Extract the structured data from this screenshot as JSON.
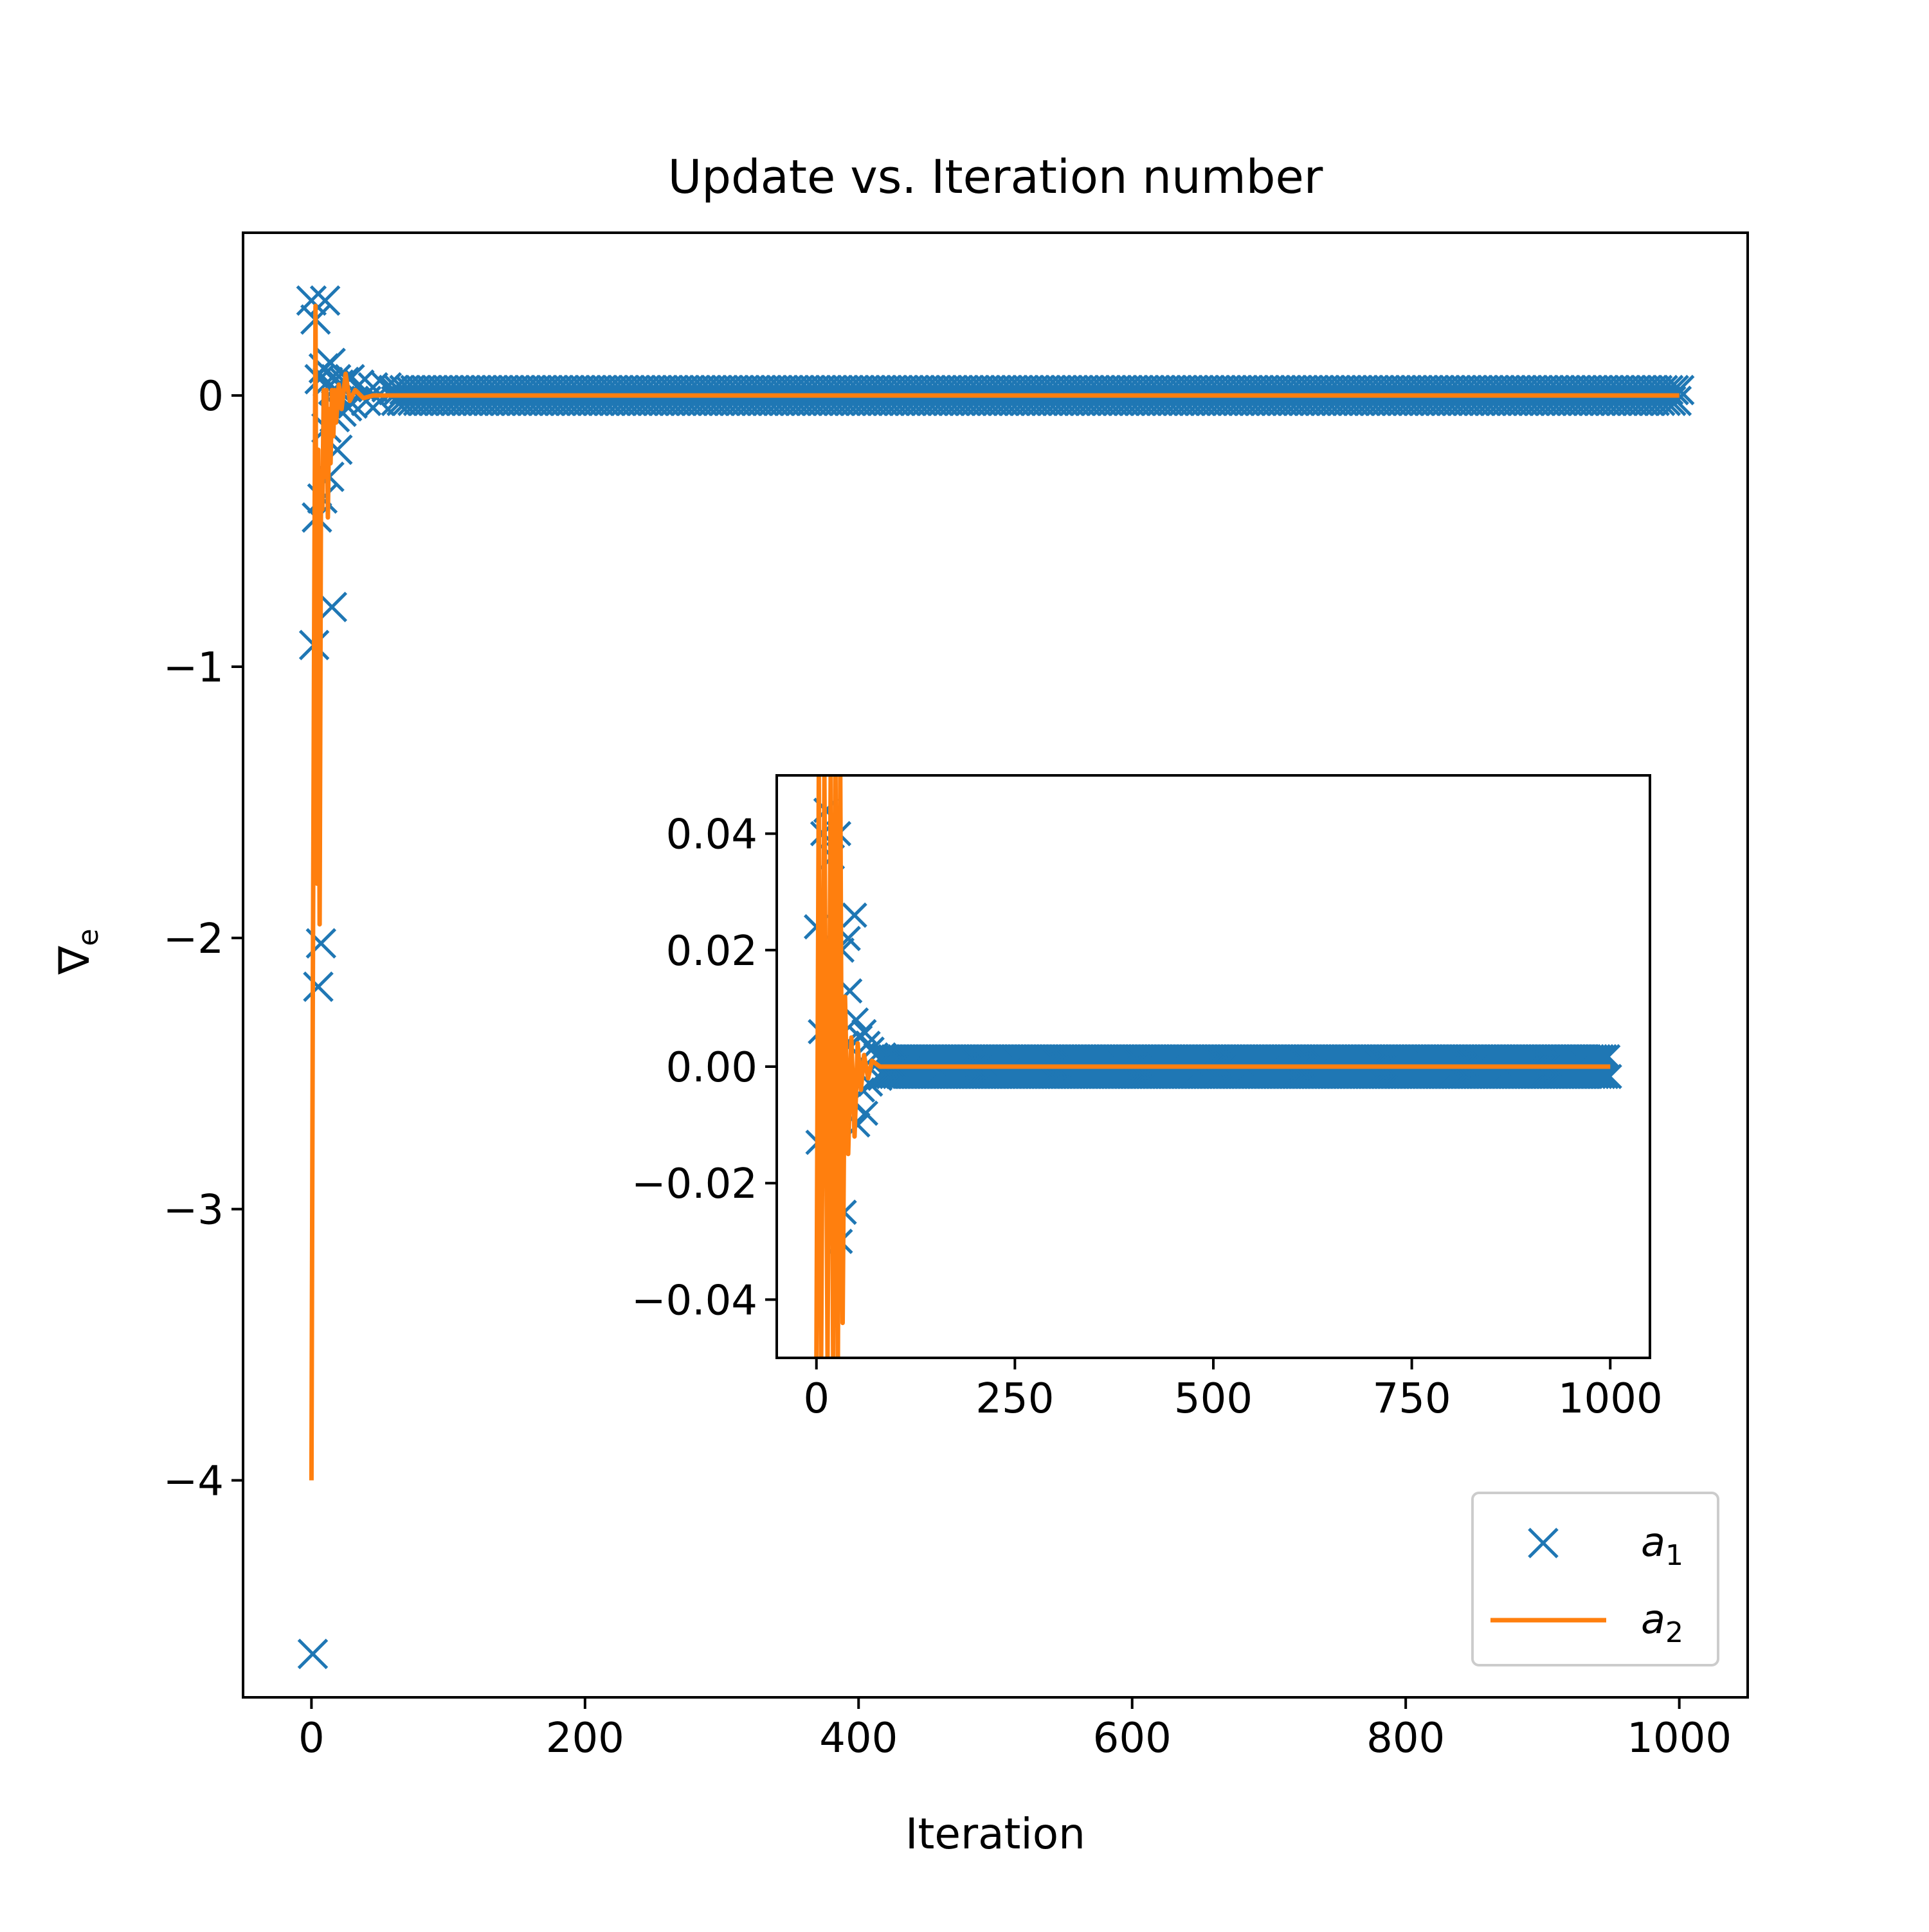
{
  "chart_data": [
    {
      "type": "scatter",
      "title": "Update vs. Iteration number",
      "xlabel": "Iteration",
      "ylabel": "∇",
      "ylabel_subscript": "e",
      "xlim": [
        -50,
        1050
      ],
      "ylim": [
        -4.8,
        0.6
      ],
      "xticks": [
        0,
        200,
        400,
        600,
        800,
        1000
      ],
      "xtick_labels": [
        "0",
        "200",
        "400",
        "600",
        "800",
        "1000"
      ],
      "yticks": [
        0,
        -1,
        -2,
        -3,
        -4
      ],
      "ytick_labels": [
        "0",
        "−1",
        "−2",
        "−3",
        "−4"
      ],
      "grid": false,
      "legend_position": "lower-right",
      "series": [
        {
          "name": "a",
          "name_subscript": "1",
          "marker": "x",
          "color": "#1f77b4",
          "points": [
            [
              0,
              0.35
            ],
            [
              1,
              -4.64
            ],
            [
              2,
              -0.92
            ],
            [
              3,
              0.28
            ],
            [
              4,
              -0.45
            ],
            [
              5,
              -2.18
            ],
            [
              6,
              0.06
            ],
            [
              7,
              -2.02
            ],
            [
              8,
              -0.38
            ],
            [
              9,
              0.1
            ],
            [
              10,
              0.35
            ],
            [
              11,
              -0.12
            ],
            [
              12,
              0.05
            ],
            [
              13,
              -0.3
            ],
            [
              14,
              0.12
            ],
            [
              15,
              -0.78
            ],
            [
              16,
              0.02
            ],
            [
              17,
              -0.08
            ],
            [
              18,
              0.06
            ],
            [
              19,
              -0.2
            ],
            [
              20,
              0.04
            ],
            [
              22,
              -0.06
            ],
            [
              24,
              0.05
            ],
            [
              26,
              -0.04
            ],
            [
              28,
              0.06
            ],
            [
              30,
              -0.03
            ],
            [
              35,
              0.04
            ],
            [
              40,
              -0.02
            ],
            [
              45,
              0.03
            ],
            [
              50,
              -0.02
            ],
            [
              55,
              0.03
            ],
            [
              60,
              0.02
            ]
          ],
          "tail": {
            "x_start": 60,
            "x_end": 1000,
            "amplitude": 0.02
          }
        },
        {
          "name": "a",
          "name_subscript": "2",
          "marker": "line",
          "color": "#ff7f0e",
          "points": [
            [
              0,
              -4.0
            ],
            [
              1,
              -2.2
            ],
            [
              2,
              -0.85
            ],
            [
              3,
              0.33
            ],
            [
              4,
              -1.8
            ],
            [
              5,
              -0.2
            ],
            [
              6,
              -1.95
            ],
            [
              7,
              -0.3
            ],
            [
              8,
              -0.42
            ],
            [
              9,
              0.02
            ],
            [
              10,
              -0.3
            ],
            [
              11,
              0.02
            ],
            [
              12,
              -0.45
            ],
            [
              13,
              -0.05
            ],
            [
              14,
              -0.25
            ],
            [
              15,
              0.02
            ],
            [
              16,
              -0.15
            ],
            [
              17,
              0.02
            ],
            [
              18,
              -0.1
            ],
            [
              20,
              0.04
            ],
            [
              22,
              -0.05
            ],
            [
              25,
              0.08
            ],
            [
              28,
              -0.02
            ],
            [
              32,
              0.02
            ],
            [
              38,
              -0.01
            ],
            [
              45,
              0.0
            ],
            [
              1000,
              0.0
            ]
          ]
        }
      ]
    },
    {
      "type": "scatter",
      "inset": true,
      "xlim": [
        -50,
        1050
      ],
      "ylim": [
        -0.05,
        0.05
      ],
      "xticks": [
        0,
        250,
        500,
        750,
        1000
      ],
      "xtick_labels": [
        "0",
        "250",
        "500",
        "750",
        "1000"
      ],
      "yticks": [
        0.04,
        0.02,
        0.0,
        -0.02,
        -0.04
      ],
      "ytick_labels": [
        "0.04",
        "0.02",
        "0.00",
        "−0.02",
        "−0.04"
      ],
      "grid": false,
      "series": [
        {
          "marker": "x",
          "color": "#1f77b4",
          "points": [
            [
              0,
              0.024
            ],
            [
              2,
              -0.013
            ],
            [
              5,
              0.006
            ],
            [
              8,
              0.04
            ],
            [
              12,
              0.044
            ],
            [
              15,
              -0.004
            ],
            [
              18,
              0.01
            ],
            [
              20,
              0.036
            ],
            [
              24,
              0.0
            ],
            [
              28,
              0.04
            ],
            [
              30,
              -0.03
            ],
            [
              32,
              0.02
            ],
            [
              35,
              -0.025
            ],
            [
              38,
              0.004
            ],
            [
              40,
              0.022
            ],
            [
              42,
              0.013
            ],
            [
              45,
              -0.006
            ],
            [
              48,
              0.026
            ],
            [
              50,
              0.008
            ],
            [
              52,
              -0.01
            ],
            [
              55,
              0.005
            ],
            [
              58,
              -0.004
            ],
            [
              60,
              0.006
            ],
            [
              62,
              -0.008
            ],
            [
              65,
              0.004
            ],
            [
              68,
              -0.003
            ],
            [
              70,
              0.003
            ],
            [
              75,
              0.002
            ],
            [
              80,
              -0.002
            ],
            [
              85,
              0.002
            ]
          ],
          "tail": {
            "x_start": 85,
            "x_end": 1000,
            "amplitude": 0.0017
          }
        },
        {
          "marker": "line",
          "color": "#ff7f0e",
          "points": [
            [
              0,
              -0.05
            ],
            [
              3,
              0.05
            ],
            [
              6,
              -0.05
            ],
            [
              10,
              0.05
            ],
            [
              14,
              -0.05
            ],
            [
              18,
              0.05
            ],
            [
              21,
              -0.05
            ],
            [
              24,
              0.05
            ],
            [
              27,
              -0.05
            ],
            [
              30,
              0.05
            ],
            [
              33,
              -0.044
            ],
            [
              36,
              0.012
            ],
            [
              40,
              -0.015
            ],
            [
              44,
              0.005
            ],
            [
              48,
              -0.012
            ],
            [
              52,
              0.004
            ],
            [
              56,
              -0.004
            ],
            [
              60,
              0.002
            ],
            [
              65,
              -0.002
            ],
            [
              70,
              0.001
            ],
            [
              80,
              0.0
            ],
            [
              1000,
              0.0
            ]
          ]
        }
      ]
    }
  ]
}
